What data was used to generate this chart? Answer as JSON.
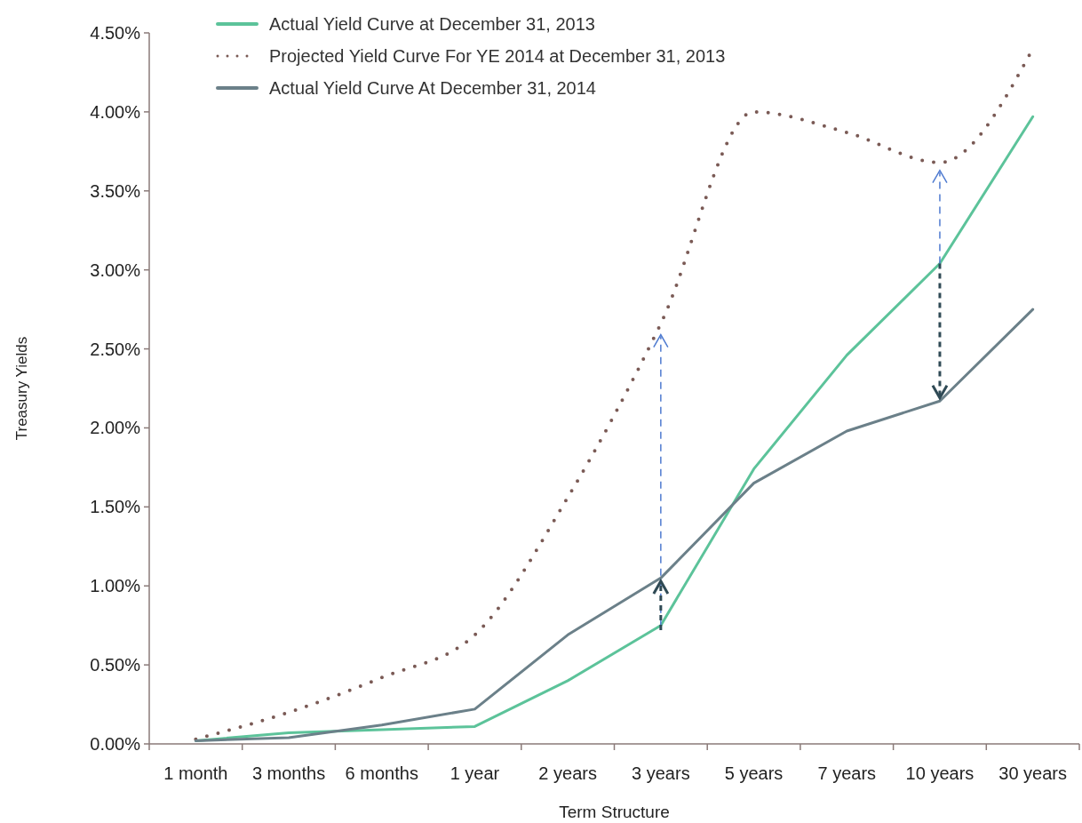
{
  "chart_data": {
    "type": "line",
    "xlabel": "Term Structure",
    "ylabel": "Treasury Yields",
    "categories": [
      "1 month",
      "3 months",
      "6 months",
      "1 year",
      "2 years",
      "3 years",
      "5 years",
      "7 years",
      "10 years",
      "30 years"
    ],
    "series": [
      {
        "name": "Actual Yield Curve at December 31, 2013",
        "color": "#5cc39a",
        "line_style": "solid",
        "values": [
          0.02,
          0.07,
          0.09,
          0.11,
          0.4,
          0.75,
          1.74,
          2.46,
          3.04,
          3.97
        ]
      },
      {
        "name": "Projected Yield Curve For YE 2014 at December 31, 2013",
        "color": "#7a5a55",
        "line_style": "dotted",
        "values": [
          0.03,
          0.2,
          0.42,
          0.69,
          1.56,
          2.66,
          4.0,
          3.87,
          3.68,
          4.4
        ]
      },
      {
        "name": "Actual Yield Curve At December 31, 2014",
        "color": "#6b8089",
        "line_style": "solid",
        "values": [
          0.02,
          0.04,
          0.12,
          0.22,
          0.69,
          1.05,
          1.65,
          1.98,
          2.17,
          2.75
        ]
      }
    ],
    "ylim": [
      0,
      4.5
    ],
    "yticks": [
      {
        "value": 0,
        "label": "0.00%"
      },
      {
        "value": 0.5,
        "label": "0.50%"
      },
      {
        "value": 1,
        "label": "1.00%"
      },
      {
        "value": 1.5,
        "label": "1.50%"
      },
      {
        "value": 2,
        "label": "2.00%"
      },
      {
        "value": 2.5,
        "label": "2.50%"
      },
      {
        "value": 3,
        "label": "3.00%"
      },
      {
        "value": 3.5,
        "label": "3.50%"
      },
      {
        "value": 4,
        "label": "4.00%"
      },
      {
        "value": 4.5,
        "label": "4.50%"
      }
    ],
    "grid": false,
    "legend": "top",
    "marker": "none"
  }
}
